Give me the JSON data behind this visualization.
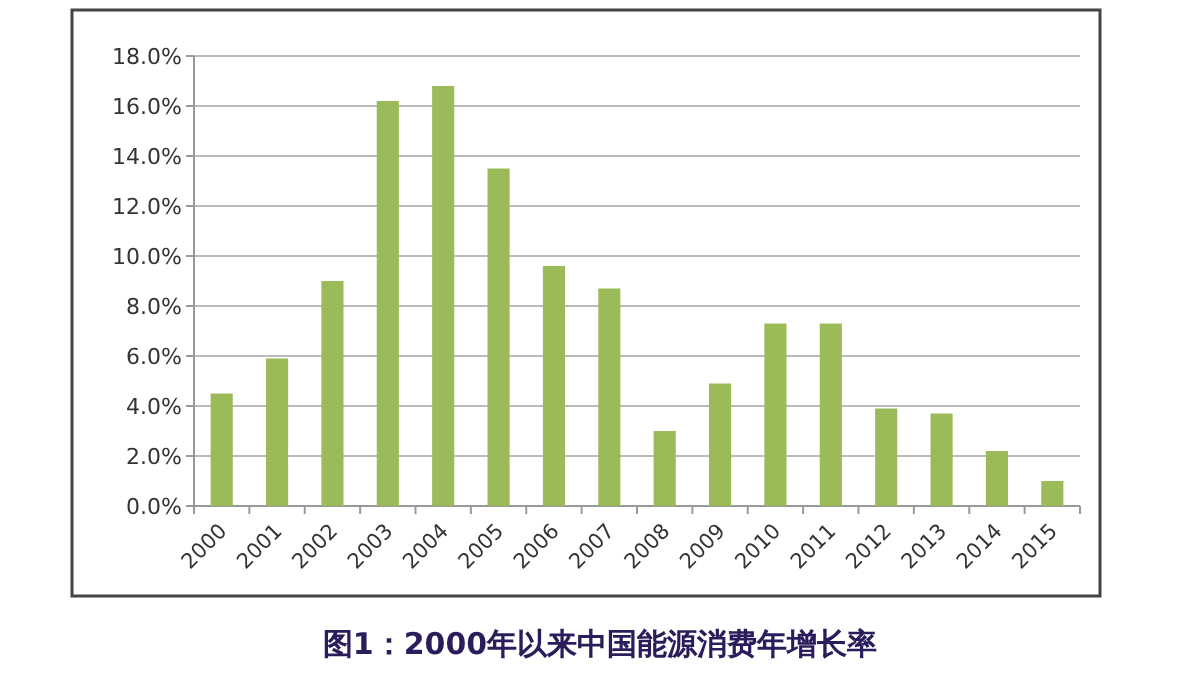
{
  "chart_data": {
    "type": "bar",
    "title": "图1：2000年以来中国能源消费年增长率",
    "categories": [
      "2000",
      "2001",
      "2002",
      "2003",
      "2004",
      "2005",
      "2006",
      "2007",
      "2008",
      "2009",
      "2010",
      "2011",
      "2012",
      "2013",
      "2014",
      "2015"
    ],
    "values": [
      4.5,
      5.9,
      9.0,
      16.2,
      16.8,
      13.5,
      9.6,
      8.7,
      3.0,
      4.9,
      7.3,
      7.3,
      3.9,
      3.7,
      2.2,
      1.0
    ],
    "color": "#9bbb59",
    "ylim": [
      0,
      18
    ],
    "yticks": [
      {
        "value": 0,
        "label": "0.0%"
      },
      {
        "value": 2,
        "label": "2.0%"
      },
      {
        "value": 4,
        "label": "4.0%"
      },
      {
        "value": 6,
        "label": "6.0%"
      },
      {
        "value": 8,
        "label": "8.0%"
      },
      {
        "value": 10,
        "label": "10.0%"
      },
      {
        "value": 12,
        "label": "12.0%"
      },
      {
        "value": 14,
        "label": "14.0%"
      },
      {
        "value": 16,
        "label": "16.0%"
      },
      {
        "value": 18,
        "label": "18.0%"
      }
    ],
    "grid": "y"
  }
}
